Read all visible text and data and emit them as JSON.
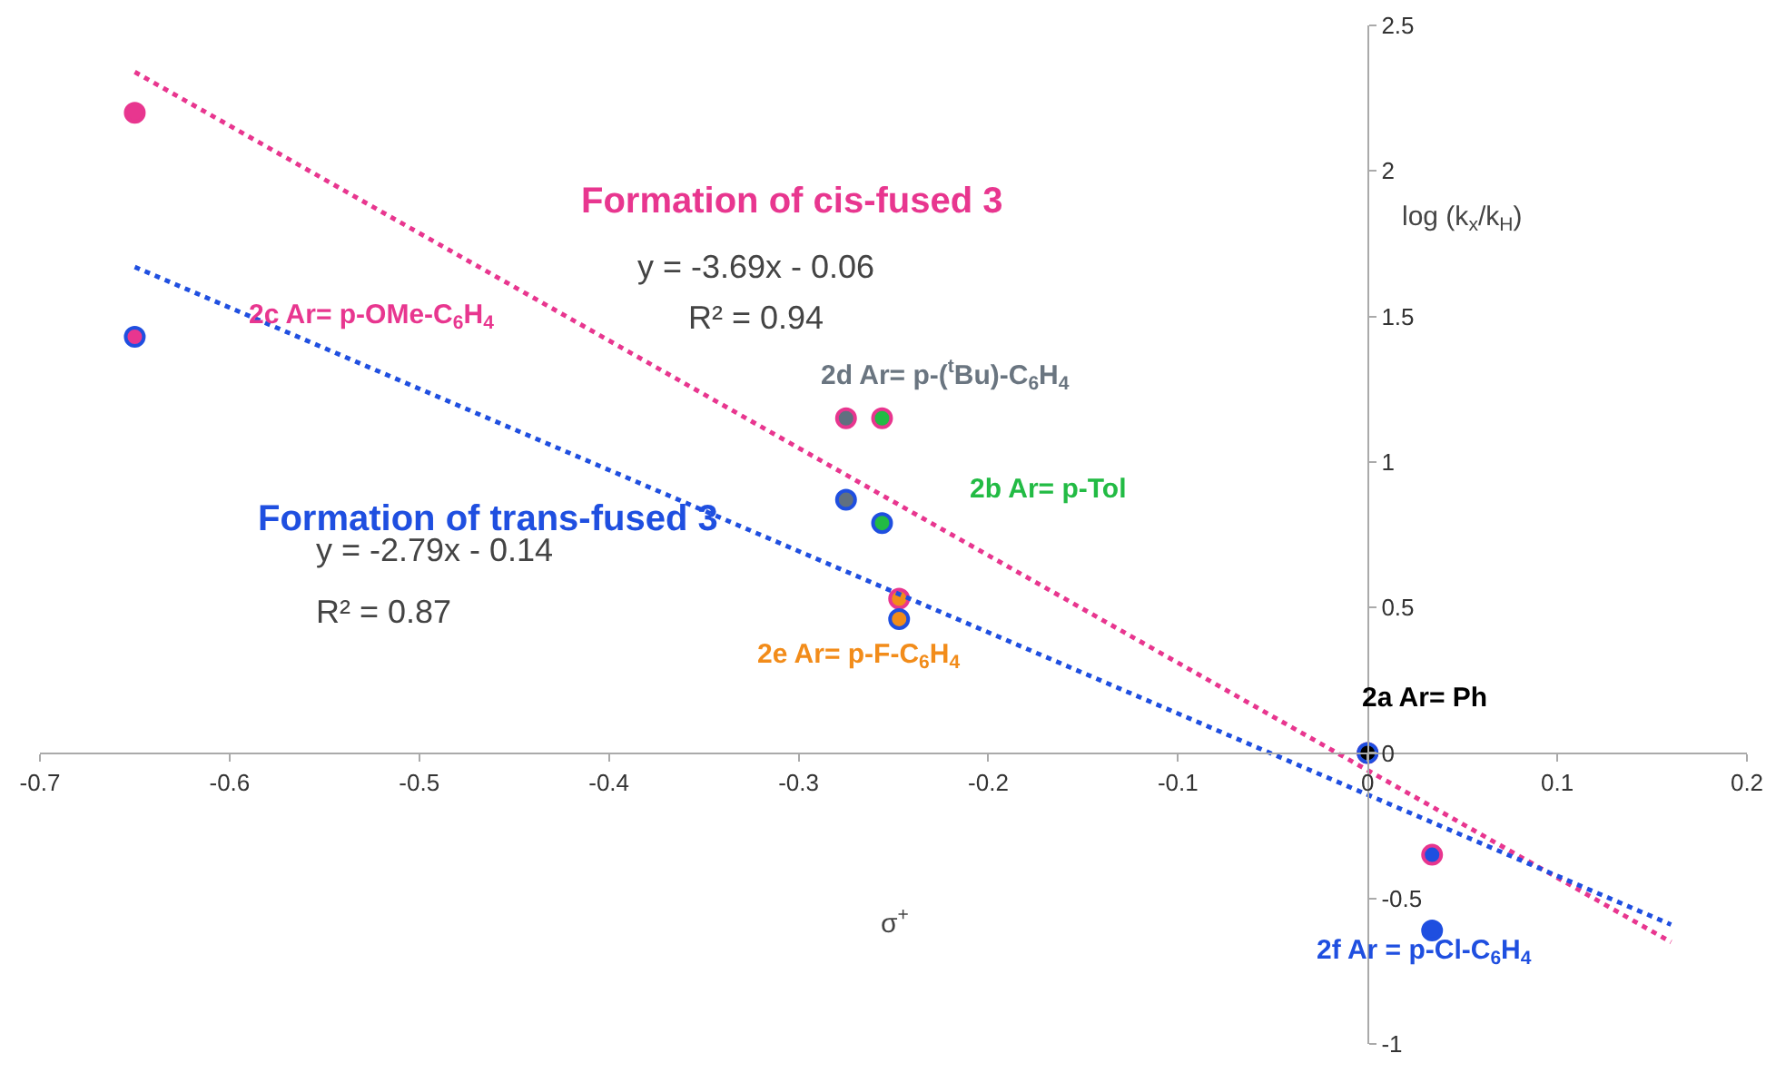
{
  "chart_data": {
    "type": "scatter",
    "xlabel": "σ$^{+}$",
    "ylabel": "log (k$_{x}$/k$_{H}$)",
    "xlim": [
      -0.7,
      0.2
    ],
    "xticks": [
      -0.7,
      -0.6,
      -0.5,
      -0.4,
      -0.3,
      -0.2,
      -0.1,
      0,
      0.1,
      0.2
    ],
    "ylim": [
      -1,
      2.5
    ],
    "yticks": [
      -1,
      -0.5,
      0,
      0.5,
      1,
      1.5,
      2,
      2.5
    ],
    "marker": "circle",
    "series": [
      {
        "type": "scatter",
        "color": "#e8368f",
        "x": [
          -0.65,
          -0.275,
          -0.256,
          -0.247,
          0,
          0.034
        ],
        "values": [
          2.2,
          1.15,
          1.15,
          0.53,
          0,
          -0.35
        ],
        "colors": [
          "#e8368f",
          "#607080",
          "#22bb44",
          "#f28c1a",
          "#000000",
          "#1f4fe0"
        ]
      },
      {
        "type": "scatter",
        "color": "#1f4fe0",
        "x": [
          -0.65,
          -0.275,
          -0.256,
          -0.247,
          0,
          0.034
        ],
        "values": [
          1.43,
          0.87,
          0.79,
          0.46,
          0,
          -0.61
        ],
        "colors": [
          "#e8368f",
          "#607080",
          "#22bb44",
          "#f28c1a",
          "#000000",
          "#1f4fe0"
        ]
      },
      {
        "type": "line",
        "color": "#e8368f",
        "line_style": "dotted",
        "marker": "none",
        "x": [
          -0.65,
          0.16
        ],
        "values": [
          2.34,
          -0.65
        ]
      },
      {
        "type": "line",
        "color": "#1f4fe0",
        "line_style": "dotted",
        "marker": "none",
        "x": [
          -0.65,
          0.16
        ],
        "values": [
          1.67,
          -0.59
        ]
      }
    ],
    "annotations": [
      "Formation of cis-fused 3",
      "y = -3.69x - 0.06",
      "R² = 0.94",
      "2c Ar= p-OMe-C$_{6}$H$_{4}$",
      "2d Ar= p-($^{t}$Bu)-C$_{6}$H$_{4}$",
      "2b Ar= p-Tol",
      "Formation of trans-fused 3",
      "y = -2.79x - 0.14",
      "R² = 0.87",
      "2e Ar= p-F-C$_{6}$H$_{4}$",
      "2a Ar= Ph",
      "2f Ar = p-Cl-C$_{6}$H$_{4}$"
    ]
  }
}
